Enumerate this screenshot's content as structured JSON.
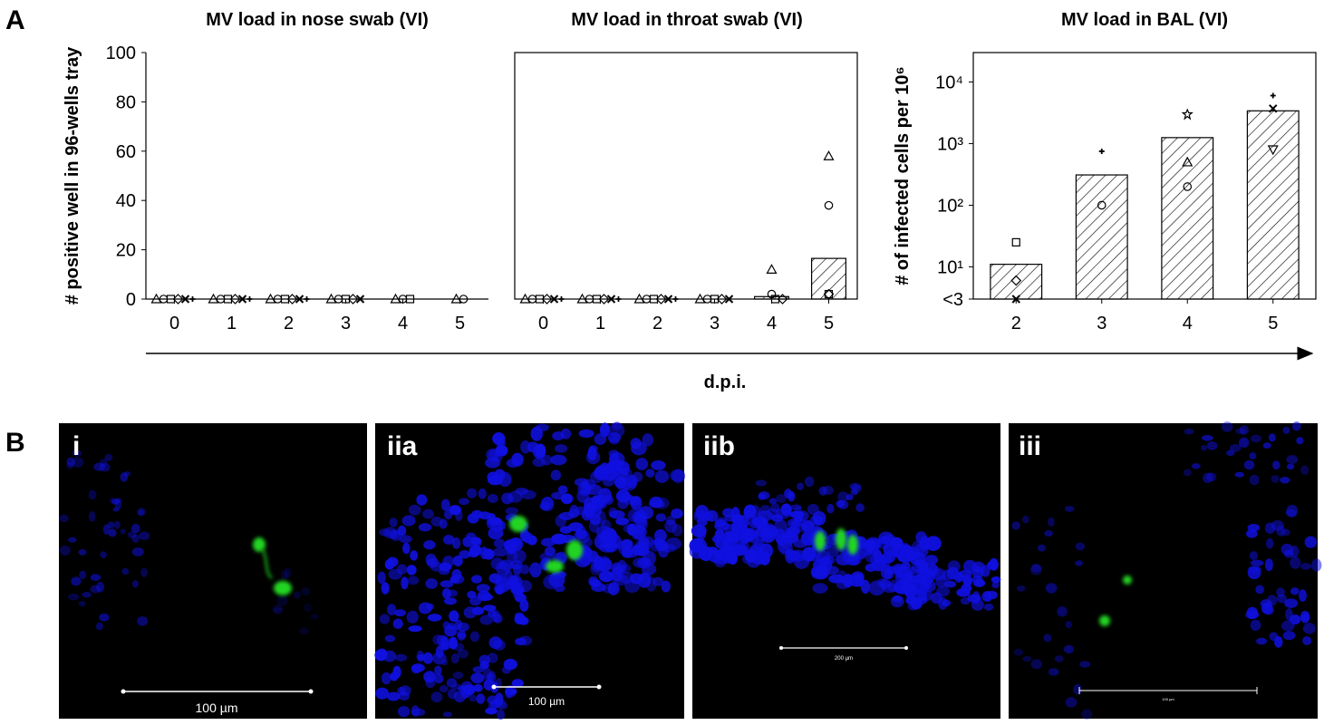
{
  "panel_labels": {
    "a": "A",
    "b": "B"
  },
  "xaxis_label": "d.p.i.",
  "chart_data": [
    {
      "type": "bar",
      "title": "MV load in nose swab (VI)",
      "ylabel": "# positive well in 96-wells tray",
      "xlabel": "",
      "ylim": [
        0,
        100
      ],
      "yticks": [
        "0",
        "20",
        "40",
        "60",
        "80",
        "100"
      ],
      "categories": [
        "0",
        "1",
        "2",
        "3",
        "4",
        "5"
      ],
      "values": [
        0,
        0,
        0,
        0,
        0,
        0
      ],
      "individual_points": [
        {
          "x": "0",
          "values": [
            0,
            0,
            0,
            0,
            0,
            0
          ]
        },
        {
          "x": "1",
          "values": [
            0,
            0,
            0,
            0,
            0,
            0
          ]
        },
        {
          "x": "2",
          "values": [
            0,
            0,
            0,
            0,
            0,
            0
          ]
        },
        {
          "x": "3",
          "values": [
            0,
            0,
            0,
            0,
            0
          ]
        },
        {
          "x": "4",
          "values": [
            0,
            0,
            0
          ]
        },
        {
          "x": "5",
          "values": [
            0,
            0
          ]
        }
      ],
      "grid": false
    },
    {
      "type": "bar",
      "title": "MV load in throat swab (VI)",
      "xlabel": "",
      "ylim": [
        0,
        100
      ],
      "categories": [
        "0",
        "1",
        "2",
        "3",
        "4",
        "5"
      ],
      "values": [
        0,
        0,
        0,
        0,
        1,
        16.5
      ],
      "individual_points": [
        {
          "x": "0",
          "values": [
            0,
            0,
            0,
            0,
            0,
            0
          ]
        },
        {
          "x": "1",
          "values": [
            0,
            0,
            0,
            0,
            0,
            0
          ]
        },
        {
          "x": "2",
          "values": [
            0,
            0,
            0,
            0,
            0,
            0
          ]
        },
        {
          "x": "3",
          "values": [
            0,
            0,
            0,
            0,
            0
          ]
        },
        {
          "x": "4",
          "values": [
            12,
            2,
            0,
            0
          ]
        },
        {
          "x": "5",
          "values": [
            58,
            38,
            2,
            2
          ]
        }
      ],
      "grid": false
    },
    {
      "type": "bar",
      "title": "MV load in BAL (VI)",
      "ylabel": "# of infected cells per 10⁶",
      "xlabel": "",
      "yscale": "log",
      "ylim": [
        3,
        30000
      ],
      "yticks": [
        "<3",
        "10¹",
        "10²",
        "10³",
        "10⁴"
      ],
      "categories": [
        "2",
        "3",
        "4",
        "5"
      ],
      "values": [
        11,
        310,
        1250,
        3400
      ],
      "individual_points": [
        {
          "x": "2",
          "values": [
            25,
            6,
            3
          ]
        },
        {
          "x": "3",
          "values": [
            750,
            100
          ]
        },
        {
          "x": "4",
          "values": [
            3000,
            500,
            200
          ]
        },
        {
          "x": "5",
          "values": [
            6000,
            3700,
            800
          ]
        }
      ],
      "grid": false
    }
  ],
  "micrographs": [
    {
      "label": "i",
      "scale_bar": "100 µm"
    },
    {
      "label": "iia",
      "scale_bar": "100 µm"
    },
    {
      "label": "iib",
      "scale_bar": "200 µm"
    },
    {
      "label": "iii",
      "scale_bar": "100 µm"
    }
  ],
  "colors": {
    "nuclei": "#1010e0",
    "infected": "#22d422",
    "background": "#000000"
  }
}
